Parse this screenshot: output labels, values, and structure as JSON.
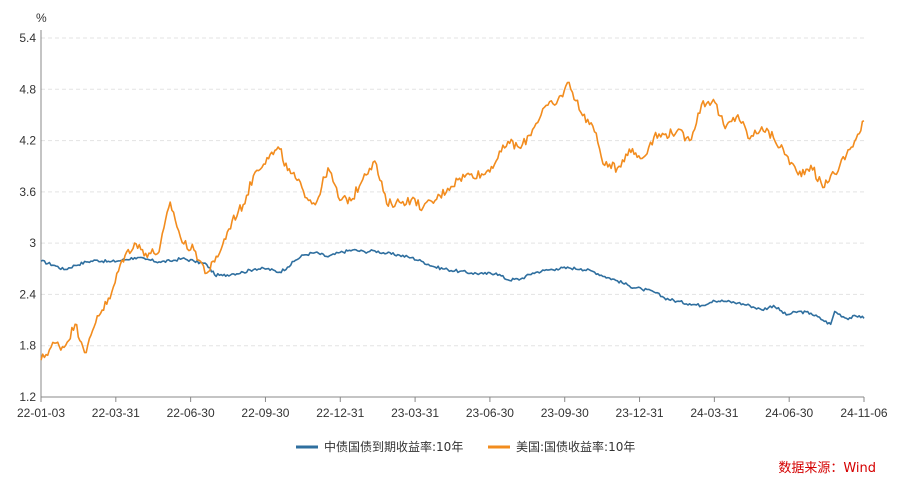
{
  "chart_data": {
    "type": "line",
    "ylabel": "%",
    "ylim": [
      1.2,
      5.4
    ],
    "yticks": [
      "1.2",
      "1.8",
      "2.4",
      "3",
      "3.6",
      "4.2",
      "4.8",
      "5.4"
    ],
    "xticks": [
      "22-01-03",
      "22-03-31",
      "22-06-30",
      "22-09-30",
      "22-12-31",
      "23-03-31",
      "23-06-30",
      "23-09-30",
      "23-12-31",
      "24-03-31",
      "24-06-30",
      "24-11-06"
    ],
    "xlim": [
      "2022-01-03",
      "2024-11-06"
    ],
    "grid": true,
    "legend_position": "bottom",
    "series": [
      {
        "name": "中债国债到期收益率:10年",
        "color": "#2f6f9f",
        "points": [
          [
            "2022-01-03",
            2.79
          ],
          [
            "2022-01-20",
            2.74
          ],
          [
            "2022-02-01",
            2.69
          ],
          [
            "2022-02-15",
            2.74
          ],
          [
            "2022-03-01",
            2.78
          ],
          [
            "2022-03-15",
            2.8
          ],
          [
            "2022-03-31",
            2.78
          ],
          [
            "2022-04-15",
            2.8
          ],
          [
            "2022-05-01",
            2.83
          ],
          [
            "2022-05-15",
            2.81
          ],
          [
            "2022-06-01",
            2.78
          ],
          [
            "2022-06-15",
            2.79
          ],
          [
            "2022-06-30",
            2.82
          ],
          [
            "2022-07-15",
            2.79
          ],
          [
            "2022-07-31",
            2.75
          ],
          [
            "2022-08-10",
            2.63
          ],
          [
            "2022-08-20",
            2.62
          ],
          [
            "2022-09-01",
            2.64
          ],
          [
            "2022-09-15",
            2.66
          ],
          [
            "2022-09-30",
            2.7
          ],
          [
            "2022-10-15",
            2.7
          ],
          [
            "2022-10-31",
            2.66
          ],
          [
            "2022-11-10",
            2.72
          ],
          [
            "2022-11-20",
            2.8
          ],
          [
            "2022-11-30",
            2.86
          ],
          [
            "2022-12-15",
            2.89
          ],
          [
            "2022-12-31",
            2.84
          ],
          [
            "2023-01-15",
            2.89
          ],
          [
            "2023-01-31",
            2.92
          ],
          [
            "2023-02-15",
            2.9
          ],
          [
            "2023-02-28",
            2.91
          ],
          [
            "2023-03-15",
            2.88
          ],
          [
            "2023-03-31",
            2.86
          ],
          [
            "2023-04-15",
            2.83
          ],
          [
            "2023-04-30",
            2.78
          ],
          [
            "2023-05-15",
            2.72
          ],
          [
            "2023-05-31",
            2.69
          ],
          [
            "2023-06-15",
            2.67
          ],
          [
            "2023-06-30",
            2.65
          ],
          [
            "2023-07-15",
            2.64
          ],
          [
            "2023-07-31",
            2.65
          ],
          [
            "2023-08-15",
            2.57
          ],
          [
            "2023-08-31",
            2.58
          ],
          [
            "2023-09-15",
            2.65
          ],
          [
            "2023-09-30",
            2.68
          ],
          [
            "2023-10-15",
            2.7
          ],
          [
            "2023-10-31",
            2.71
          ],
          [
            "2023-11-15",
            2.7
          ],
          [
            "2023-11-30",
            2.67
          ],
          [
            "2023-12-15",
            2.61
          ],
          [
            "2023-12-31",
            2.56
          ],
          [
            "2024-01-15",
            2.5
          ],
          [
            "2024-01-31",
            2.46
          ],
          [
            "2024-02-15",
            2.43
          ],
          [
            "2024-02-28",
            2.36
          ],
          [
            "2024-03-15",
            2.32
          ],
          [
            "2024-03-31",
            2.29
          ],
          [
            "2024-04-15",
            2.27
          ],
          [
            "2024-04-30",
            2.33
          ],
          [
            "2024-05-15",
            2.32
          ],
          [
            "2024-05-31",
            2.3
          ],
          [
            "2024-06-15",
            2.27
          ],
          [
            "2024-06-30",
            2.22
          ],
          [
            "2024-07-15",
            2.27
          ],
          [
            "2024-07-31",
            2.16
          ],
          [
            "2024-08-15",
            2.2
          ],
          [
            "2024-08-31",
            2.18
          ],
          [
            "2024-09-15",
            2.1
          ],
          [
            "2024-09-25",
            2.05
          ],
          [
            "2024-09-30",
            2.2
          ],
          [
            "2024-10-15",
            2.12
          ],
          [
            "2024-10-31",
            2.15
          ],
          [
            "2024-11-06",
            2.12
          ]
        ]
      },
      {
        "name": "美国:国债收益率:10年",
        "color": "#f28c1e",
        "points": [
          [
            "2022-01-03",
            1.63
          ],
          [
            "2022-01-20",
            1.83
          ],
          [
            "2022-02-01",
            1.78
          ],
          [
            "2022-02-15",
            2.05
          ],
          [
            "2022-03-01",
            1.72
          ],
          [
            "2022-03-15",
            2.15
          ],
          [
            "2022-03-31",
            2.35
          ],
          [
            "2022-04-15",
            2.8
          ],
          [
            "2022-05-01",
            3.0
          ],
          [
            "2022-05-15",
            2.88
          ],
          [
            "2022-06-01",
            2.9
          ],
          [
            "2022-06-15",
            3.48
          ],
          [
            "2022-06-30",
            3.01
          ],
          [
            "2022-07-15",
            2.92
          ],
          [
            "2022-07-31",
            2.65
          ],
          [
            "2022-08-10",
            2.78
          ],
          [
            "2022-08-20",
            2.98
          ],
          [
            "2022-09-01",
            3.26
          ],
          [
            "2022-09-15",
            3.45
          ],
          [
            "2022-09-30",
            3.83
          ],
          [
            "2022-10-15",
            4.0
          ],
          [
            "2022-10-31",
            4.1
          ],
          [
            "2022-11-10",
            3.85
          ],
          [
            "2022-11-20",
            3.76
          ],
          [
            "2022-11-30",
            3.61
          ],
          [
            "2022-12-15",
            3.45
          ],
          [
            "2022-12-31",
            3.88
          ],
          [
            "2023-01-15",
            3.5
          ],
          [
            "2023-01-31",
            3.52
          ],
          [
            "2023-02-15",
            3.81
          ],
          [
            "2023-02-28",
            3.96
          ],
          [
            "2023-03-15",
            3.46
          ],
          [
            "2023-03-31",
            3.48
          ],
          [
            "2023-04-15",
            3.51
          ],
          [
            "2023-04-30",
            3.42
          ],
          [
            "2023-05-15",
            3.5
          ],
          [
            "2023-05-31",
            3.64
          ],
          [
            "2023-06-15",
            3.76
          ],
          [
            "2023-06-30",
            3.81
          ],
          [
            "2023-07-15",
            3.8
          ],
          [
            "2023-07-31",
            3.96
          ],
          [
            "2023-08-15",
            4.19
          ],
          [
            "2023-08-31",
            4.11
          ],
          [
            "2023-09-15",
            4.33
          ],
          [
            "2023-09-30",
            4.59
          ],
          [
            "2023-10-15",
            4.63
          ],
          [
            "2023-10-31",
            4.88
          ],
          [
            "2023-11-15",
            4.53
          ],
          [
            "2023-11-30",
            4.37
          ],
          [
            "2023-12-15",
            3.91
          ],
          [
            "2023-12-31",
            3.88
          ],
          [
            "2024-01-15",
            4.1
          ],
          [
            "2024-01-31",
            3.99
          ],
          [
            "2024-02-15",
            4.24
          ],
          [
            "2024-02-28",
            4.27
          ],
          [
            "2024-03-15",
            4.31
          ],
          [
            "2024-03-31",
            4.2
          ],
          [
            "2024-04-15",
            4.62
          ],
          [
            "2024-04-30",
            4.68
          ],
          [
            "2024-05-15",
            4.34
          ],
          [
            "2024-05-31",
            4.5
          ],
          [
            "2024-06-15",
            4.22
          ],
          [
            "2024-06-30",
            4.36
          ],
          [
            "2024-07-15",
            4.23
          ],
          [
            "2024-07-31",
            4.03
          ],
          [
            "2024-08-15",
            3.8
          ],
          [
            "2024-08-31",
            3.91
          ],
          [
            "2024-09-15",
            3.65
          ],
          [
            "2024-09-25",
            3.79
          ],
          [
            "2024-09-30",
            3.81
          ],
          [
            "2024-10-15",
            4.04
          ],
          [
            "2024-10-31",
            4.28
          ],
          [
            "2024-11-06",
            4.43
          ]
        ]
      }
    ]
  },
  "source": "数据来源：Wind"
}
